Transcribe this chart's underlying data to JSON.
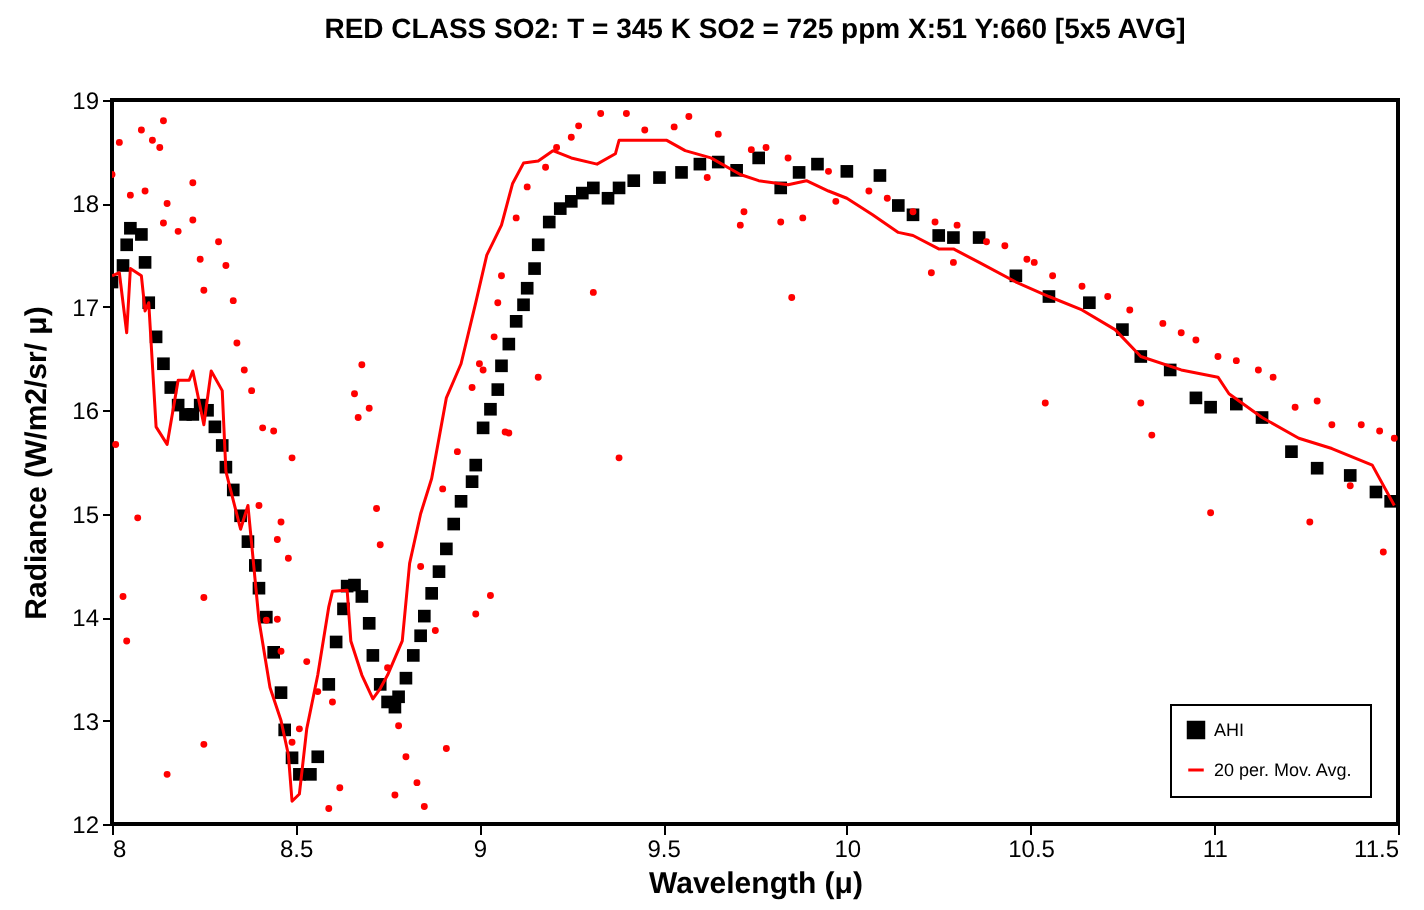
{
  "chart_data": {
    "type": "scatter",
    "title": "RED CLASS SO2:  T = 345 K   SO2 = 725 ppm      X:51  Y:660 [5x5 AVG]",
    "xlabel": "Wavelength (μ)",
    "ylabel": "Radiance (W/m2/sr/ μ)",
    "xlim": [
      8,
      11.5
    ],
    "ylim": [
      12,
      19
    ],
    "xticks": [
      8,
      8.5,
      9,
      9.5,
      10,
      10.5,
      11,
      11.5
    ],
    "yticks": [
      12,
      13,
      14,
      15,
      16,
      17,
      18,
      19
    ],
    "legend": "bottom right",
    "series": [
      {
        "name": "AHI",
        "marker": "square",
        "color": "#000000",
        "x": [
          8.0,
          8.03,
          8.04,
          8.05,
          8.08,
          8.09,
          8.1,
          8.12,
          8.14,
          8.16,
          8.18,
          8.2,
          8.22,
          8.24,
          8.26,
          8.28,
          8.3,
          8.31,
          8.33,
          8.35,
          8.37,
          8.39,
          8.4,
          8.42,
          8.44,
          8.46,
          8.47,
          8.49,
          8.51,
          8.54,
          8.56,
          8.59,
          8.61,
          8.63,
          8.64,
          8.66,
          8.68,
          8.7,
          8.71,
          8.73,
          8.75,
          8.77,
          8.78,
          8.8,
          8.82,
          8.84,
          8.85,
          8.87,
          8.89,
          8.91,
          8.93,
          8.95,
          8.98,
          8.99,
          9.01,
          9.03,
          9.05,
          9.06,
          9.08,
          9.1,
          9.12,
          9.13,
          9.15,
          9.16,
          9.19,
          9.22,
          9.25,
          9.28,
          9.31,
          9.35,
          9.38,
          9.42,
          9.49,
          9.55,
          9.6,
          9.65,
          9.7,
          9.76,
          9.82,
          9.87,
          9.92,
          10.0,
          10.09,
          10.14,
          10.18,
          10.25,
          10.29,
          10.36,
          10.46,
          10.55,
          10.66,
          10.75,
          10.8,
          10.88,
          10.95,
          10.99,
          11.06,
          11.13,
          11.21,
          11.28,
          11.37,
          11.44,
          11.48
        ],
        "values": [
          17.24,
          17.4,
          17.6,
          17.76,
          17.7,
          17.43,
          17.04,
          16.71,
          16.45,
          16.22,
          16.05,
          15.96,
          15.96,
          16.05,
          16.0,
          15.84,
          15.66,
          15.45,
          15.23,
          14.98,
          14.73,
          14.5,
          14.28,
          14.0,
          13.66,
          13.27,
          12.91,
          12.64,
          12.48,
          12.48,
          12.65,
          13.35,
          13.76,
          14.08,
          14.3,
          14.31,
          14.2,
          13.94,
          13.63,
          13.35,
          13.18,
          13.13,
          13.23,
          13.41,
          13.63,
          13.82,
          14.01,
          14.23,
          14.44,
          14.66,
          14.9,
          15.12,
          15.31,
          15.47,
          15.83,
          16.01,
          16.2,
          16.43,
          16.64,
          16.86,
          17.02,
          17.18,
          17.37,
          17.6,
          17.82,
          17.95,
          18.02,
          18.1,
          18.15,
          18.05,
          18.15,
          18.22,
          18.25,
          18.3,
          18.38,
          18.4,
          18.32,
          18.44,
          18.15,
          18.3,
          18.38,
          18.31,
          18.27,
          17.98,
          17.89,
          17.69,
          17.67,
          17.67,
          17.3,
          17.1,
          17.04,
          16.78,
          16.52,
          16.39,
          16.12,
          16.03,
          16.06,
          15.93,
          15.6,
          15.44,
          15.37,
          15.21,
          15.12
        ]
      },
      {
        "marker": "circle",
        "color": "#ff0000",
        "x": [
          8.0,
          8.02,
          8.08,
          8.14,
          8.11,
          8.13,
          8.05,
          8.09,
          8.14,
          8.15,
          8.18,
          8.22,
          8.22,
          8.24,
          8.25,
          8.29,
          8.31,
          8.33,
          8.34,
          8.36,
          8.38,
          8.41,
          8.44,
          8.49,
          8.4,
          8.46,
          8.48,
          8.45,
          8.46,
          8.51,
          8.49,
          8.53,
          8.56,
          8.59,
          8.62,
          8.6,
          8.66,
          8.67,
          8.68,
          8.7,
          8.72,
          8.73,
          8.75,
          8.77,
          8.8,
          8.83,
          8.85,
          8.91,
          8.78,
          8.84,
          8.88,
          8.9,
          8.94,
          8.98,
          8.99,
          9.03,
          9.01,
          9.04,
          9.08,
          9.06,
          9.1,
          9.16,
          9.13,
          8.04,
          8.03,
          8.07,
          8.01,
          8.15,
          8.25,
          8.25,
          8.42,
          8.45,
          9.38,
          9.31,
          9.33,
          9.4,
          9.27,
          9.45,
          9.57,
          9.53,
          9.65,
          9.62,
          9.71,
          9.72,
          9.82,
          9.85,
          9.88,
          9.97,
          9.78,
          9.74,
          9.84,
          9.95,
          10.06,
          10.11,
          10.18,
          10.23,
          10.29,
          9.07,
          9.0,
          9.05,
          9.18,
          9.21,
          9.25,
          10.24,
          10.3,
          10.38,
          10.43,
          10.49,
          10.51,
          10.54,
          10.56,
          10.64,
          10.71,
          10.77,
          10.8,
          10.83,
          10.86,
          10.91,
          10.95,
          10.99,
          11.01,
          11.06,
          11.12,
          11.16,
          11.22,
          11.26,
          11.28,
          11.32,
          11.37,
          11.4,
          11.45,
          11.46,
          11.49
        ],
        "values": [
          18.28,
          18.59,
          18.71,
          18.8,
          18.61,
          18.54,
          18.08,
          18.12,
          17.81,
          18.0,
          17.73,
          18.2,
          17.84,
          17.46,
          17.16,
          17.63,
          17.4,
          17.06,
          16.65,
          16.39,
          16.19,
          15.83,
          15.8,
          15.54,
          15.08,
          14.92,
          14.57,
          13.98,
          13.67,
          12.92,
          12.79,
          13.57,
          13.28,
          12.15,
          12.35,
          13.18,
          16.16,
          15.93,
          16.44,
          16.02,
          15.05,
          14.7,
          13.51,
          12.28,
          12.65,
          12.4,
          12.17,
          12.73,
          12.95,
          14.49,
          13.87,
          15.24,
          15.6,
          16.22,
          14.03,
          14.21,
          16.39,
          16.71,
          15.78,
          17.3,
          17.86,
          16.32,
          18.16,
          13.77,
          14.2,
          14.96,
          15.67,
          12.48,
          14.19,
          12.77,
          13.97,
          14.75,
          15.54,
          17.14,
          18.87,
          18.87,
          18.75,
          18.71,
          18.84,
          18.74,
          18.67,
          18.25,
          17.79,
          17.92,
          17.82,
          17.09,
          17.86,
          18.02,
          18.54,
          18.52,
          18.44,
          18.31,
          18.12,
          18.05,
          17.92,
          17.33,
          17.43,
          15.79,
          16.45,
          17.04,
          18.35,
          18.54,
          18.64,
          17.82,
          17.79,
          17.63,
          17.59,
          17.46,
          17.43,
          16.07,
          17.3,
          17.2,
          17.1,
          16.97,
          16.07,
          15.76,
          16.84,
          16.75,
          16.68,
          15.01,
          16.52,
          16.48,
          16.39,
          16.32,
          16.03,
          14.92,
          16.09,
          15.86,
          15.27,
          15.86,
          15.8,
          14.63,
          15.73
        ]
      },
      {
        "name": "20 per. Mov. Avg.",
        "type": "line",
        "line_style": "solid",
        "color": "#ff0000",
        "x": [
          8.0,
          8.02,
          8.04,
          8.05,
          8.08,
          8.09,
          8.1,
          8.12,
          8.15,
          8.18,
          8.21,
          8.22,
          8.25,
          8.27,
          8.3,
          8.31,
          8.35,
          8.37,
          8.4,
          8.43,
          8.46,
          8.48,
          8.49,
          8.51,
          8.53,
          8.56,
          8.59,
          8.6,
          8.64,
          8.65,
          8.68,
          8.71,
          8.73,
          8.75,
          8.79,
          8.81,
          8.84,
          8.87,
          8.91,
          8.95,
          8.99,
          9.02,
          9.06,
          9.09,
          9.12,
          9.16,
          9.2,
          9.25,
          9.32,
          9.37,
          9.38,
          9.51,
          9.56,
          9.63,
          9.71,
          9.76,
          9.84,
          9.89,
          9.95,
          10.0,
          10.07,
          10.14,
          10.18,
          10.25,
          10.29,
          10.36,
          10.46,
          10.55,
          10.64,
          10.73,
          10.8,
          10.91,
          11.01,
          11.04,
          11.13,
          11.23,
          11.32,
          11.43,
          11.49
        ],
        "values": [
          17.3,
          17.33,
          16.75,
          17.37,
          17.3,
          16.96,
          17.04,
          15.84,
          15.67,
          16.29,
          16.29,
          16.38,
          15.86,
          16.38,
          16.19,
          15.41,
          14.85,
          15.08,
          13.97,
          13.32,
          13.0,
          12.67,
          12.22,
          12.29,
          12.92,
          13.44,
          14.1,
          14.25,
          14.26,
          13.77,
          13.44,
          13.21,
          13.31,
          13.44,
          13.77,
          14.52,
          15.0,
          15.34,
          16.12,
          16.45,
          17.04,
          17.5,
          17.79,
          18.19,
          18.39,
          18.41,
          18.51,
          18.44,
          18.38,
          18.48,
          18.61,
          18.61,
          18.51,
          18.44,
          18.28,
          18.22,
          18.18,
          18.22,
          18.12,
          18.05,
          17.89,
          17.72,
          17.69,
          17.56,
          17.56,
          17.43,
          17.24,
          17.1,
          16.97,
          16.78,
          16.52,
          16.39,
          16.32,
          16.16,
          15.93,
          15.73,
          15.63,
          15.47,
          15.08
        ]
      }
    ]
  }
}
